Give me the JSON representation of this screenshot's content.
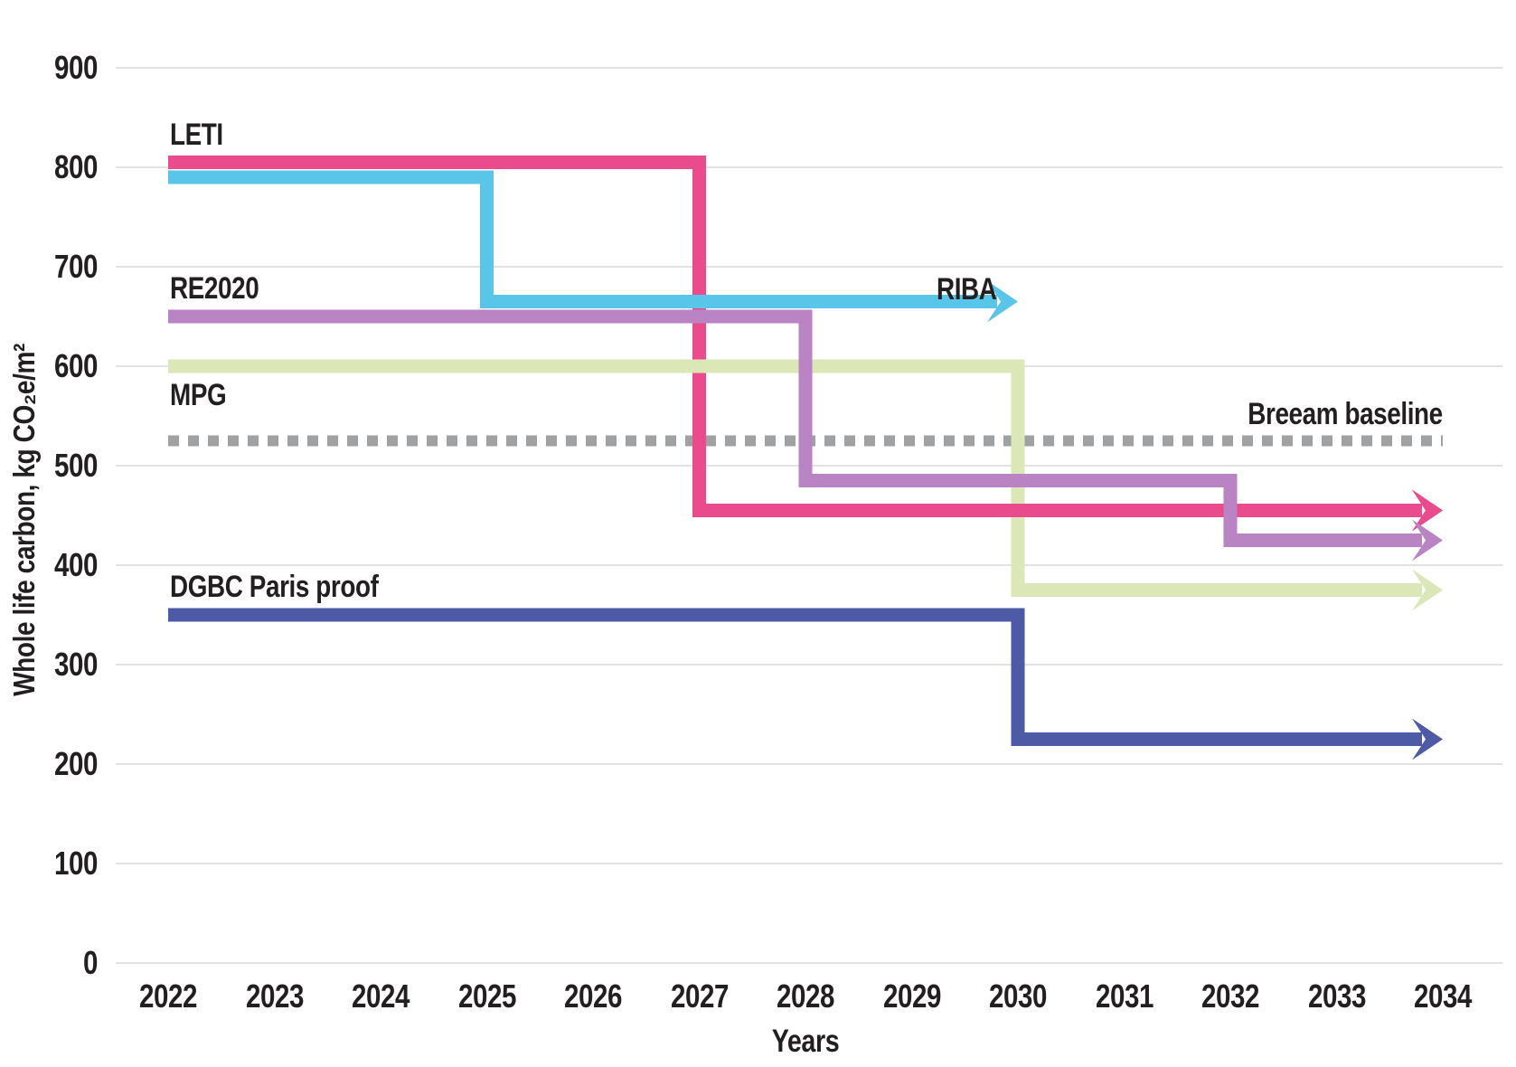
{
  "chart_data": {
    "type": "line",
    "subtype": "step-lines-with-arrows",
    "title": "",
    "xlabel": "Years",
    "ylabel": "Whole life carbon, kg CO₂e/m²",
    "x_ticks": [
      2022,
      2023,
      2024,
      2025,
      2026,
      2027,
      2028,
      2029,
      2030,
      2031,
      2032,
      2033,
      2034
    ],
    "y_ticks": [
      0,
      100,
      200,
      300,
      400,
      500,
      600,
      700,
      800,
      900
    ],
    "ylim": [
      0,
      900
    ],
    "xlim": [
      2022,
      2034
    ],
    "grid": "horizontal",
    "legend_position": "inline-labels",
    "series": [
      {
        "name": "LETI",
        "color": "#e94b8d",
        "style": "solid",
        "arrow_end": true,
        "points": [
          [
            2022,
            805
          ],
          [
            2027,
            805
          ],
          [
            2027,
            455
          ],
          [
            2034,
            455
          ]
        ]
      },
      {
        "name": "RIBA",
        "color": "#58c5e9",
        "style": "solid",
        "arrow_end": true,
        "points": [
          [
            2022,
            790
          ],
          [
            2025,
            790
          ],
          [
            2025,
            665
          ],
          [
            2030,
            665
          ]
        ]
      },
      {
        "name": "RE2020",
        "color": "#b983c4",
        "style": "solid",
        "arrow_end": true,
        "points": [
          [
            2022,
            650
          ],
          [
            2028,
            650
          ],
          [
            2028,
            485
          ],
          [
            2032,
            485
          ],
          [
            2032,
            425
          ],
          [
            2034,
            425
          ]
        ]
      },
      {
        "name": "MPG",
        "color": "#dbe7b7",
        "style": "solid",
        "arrow_end": true,
        "points": [
          [
            2022,
            600
          ],
          [
            2030,
            600
          ],
          [
            2030,
            375
          ],
          [
            2034,
            375
          ]
        ]
      },
      {
        "name": "Breeam baseline",
        "color": "#9fa1a3",
        "style": "dotted",
        "arrow_end": false,
        "points": [
          [
            2022,
            525
          ],
          [
            2034,
            525
          ]
        ]
      },
      {
        "name": "DGBC Paris proof",
        "color": "#4d5aa6",
        "style": "solid",
        "arrow_end": true,
        "points": [
          [
            2022,
            350
          ],
          [
            2030,
            350
          ],
          [
            2030,
            225
          ],
          [
            2034,
            225
          ]
        ]
      }
    ],
    "colors": {
      "grid": "#d9d9da",
      "text": "#231f20",
      "background": "#ffffff"
    }
  }
}
